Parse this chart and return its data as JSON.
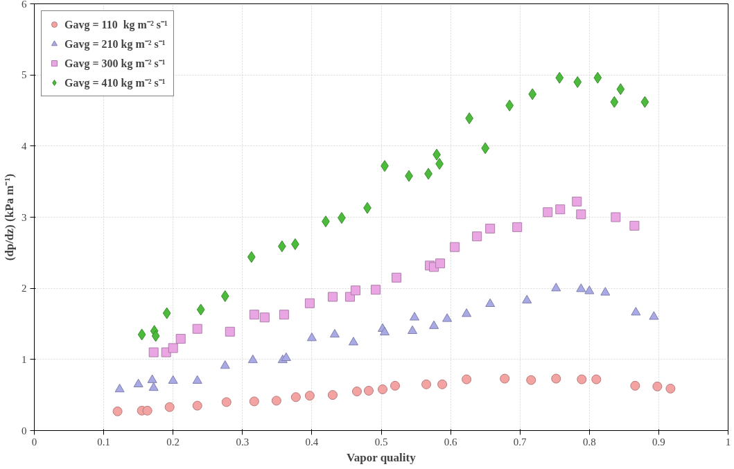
{
  "chart_data": {
    "type": "scatter",
    "xlabel": "Vapor quality",
    "ylabel": "(dp/dz) (kPa m⁻¹)",
    "xlim": [
      0,
      1
    ],
    "ylim": [
      0,
      6
    ],
    "xticks": [
      0,
      0.1,
      0.2,
      0.3,
      0.4,
      0.5,
      0.6,
      0.7,
      0.8,
      0.9,
      1
    ],
    "yticks": [
      0,
      1,
      2,
      3,
      4,
      5,
      6
    ],
    "grid": true,
    "legend": "top left",
    "series": [
      {
        "name": "Gavg = 110  kg m⁻² s⁻¹",
        "color": "#f4a3a3",
        "marker": "circle",
        "x": [
          0.12,
          0.155,
          0.163,
          0.195,
          0.235,
          0.277,
          0.317,
          0.349,
          0.377,
          0.397,
          0.43,
          0.465,
          0.482,
          0.502,
          0.52,
          0.565,
          0.588,
          0.623,
          0.678,
          0.716,
          0.752,
          0.789,
          0.81,
          0.866,
          0.898,
          0.917
        ],
        "values": [
          0.27,
          0.28,
          0.28,
          0.33,
          0.35,
          0.4,
          0.41,
          0.42,
          0.47,
          0.49,
          0.5,
          0.55,
          0.56,
          0.58,
          0.63,
          0.65,
          0.65,
          0.72,
          0.73,
          0.71,
          0.73,
          0.72,
          0.72,
          0.63,
          0.62,
          0.59
        ]
      },
      {
        "name": "Gavg = 210 kg m⁻² s⁻¹",
        "color": "#a9a9e6",
        "marker": "triangle",
        "x": [
          0.123,
          0.15,
          0.17,
          0.172,
          0.2,
          0.235,
          0.275,
          0.315,
          0.358,
          0.363,
          0.4,
          0.433,
          0.46,
          0.502,
          0.505,
          0.545,
          0.548,
          0.576,
          0.595,
          0.623,
          0.657,
          0.71,
          0.752,
          0.788,
          0.8,
          0.823,
          0.867,
          0.893
        ],
        "values": [
          0.58,
          0.65,
          0.71,
          0.6,
          0.7,
          0.7,
          0.91,
          0.99,
          0.99,
          1.02,
          1.3,
          1.35,
          1.24,
          1.43,
          1.38,
          1.4,
          1.59,
          1.47,
          1.57,
          1.64,
          1.78,
          1.83,
          2.0,
          1.99,
          1.96,
          1.94,
          1.66,
          1.6
        ]
      },
      {
        "name": "Gavg = 300 kg m⁻² s⁻¹",
        "color": "#e9a6e3",
        "marker": "square",
        "x": [
          0.172,
          0.19,
          0.2,
          0.211,
          0.235,
          0.282,
          0.317,
          0.332,
          0.36,
          0.397,
          0.43,
          0.455,
          0.463,
          0.492,
          0.522,
          0.57,
          0.576,
          0.585,
          0.606,
          0.638,
          0.657,
          0.696,
          0.74,
          0.758,
          0.782,
          0.788,
          0.838,
          0.865
        ],
        "values": [
          1.1,
          1.1,
          1.16,
          1.29,
          1.43,
          1.39,
          1.63,
          1.59,
          1.63,
          1.79,
          1.88,
          1.88,
          1.97,
          1.98,
          2.15,
          2.32,
          2.3,
          2.35,
          2.58,
          2.73,
          2.84,
          2.86,
          3.07,
          3.11,
          3.22,
          3.04,
          3.0,
          2.88
        ]
      },
      {
        "name": "Gavg = 410 kg m⁻² s⁻¹",
        "color": "#4cbb3c",
        "marker": "diamond",
        "x": [
          0.155,
          0.173,
          0.175,
          0.191,
          0.24,
          0.275,
          0.313,
          0.357,
          0.376,
          0.42,
          0.443,
          0.48,
          0.505,
          0.54,
          0.568,
          0.58,
          0.584,
          0.627,
          0.65,
          0.685,
          0.718,
          0.757,
          0.783,
          0.812,
          0.836,
          0.845,
          0.88
        ],
        "values": [
          1.35,
          1.4,
          1.33,
          1.65,
          1.7,
          1.89,
          2.44,
          2.59,
          2.62,
          2.94,
          2.99,
          3.13,
          3.72,
          3.58,
          3.61,
          3.88,
          3.75,
          4.39,
          3.97,
          4.57,
          4.73,
          4.96,
          4.9,
          4.96,
          4.62,
          4.8,
          4.62
        ]
      }
    ]
  }
}
